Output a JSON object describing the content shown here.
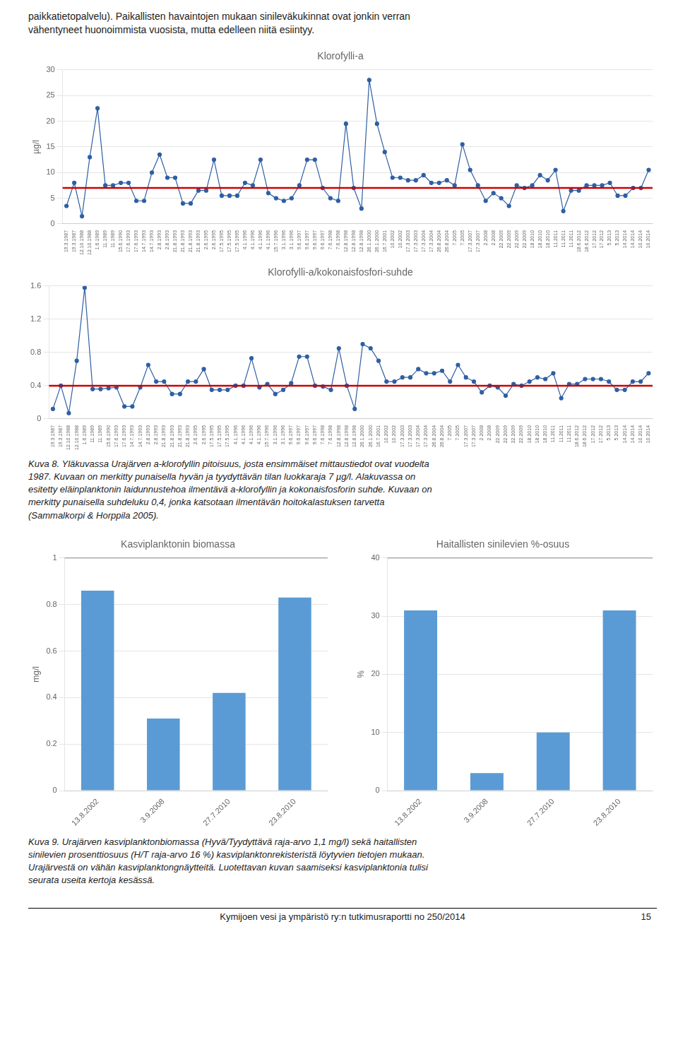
{
  "text_top": [
    "paikkatietopalvelu). Paikallisten havaintojen mukaan sinileväkukinnat ovat jonkin verran",
    "vähentyneet huonoimmista vuosista, mutta edelleen niitä esiintyy."
  ],
  "chart_data": [
    {
      "type": "line",
      "title": "Klorofylli-a",
      "ylabel": "µg/l",
      "categories": [
        "19.3.1987",
        "19.3.1987",
        "12.10.1988",
        "12.10.1988",
        "1.6.1989",
        "11.1989",
        "11.1989",
        "15.6.1990",
        "17.6.1993",
        "17.6.1993",
        "14.7.1993",
        "14.7.1993",
        "2.8.1993",
        "2.8.1993",
        "21.8.1993",
        "21.8.1993",
        "21.8.1993",
        "21.8.1993",
        "2.6.1995",
        "2.6.1995",
        "17.5.1995",
        "17.5.1995",
        "17.5.1995",
        "4.1.1996",
        "4.1.1996",
        "4.1.1996",
        "4.1.1996",
        "15.7.1996",
        "3.1.1996",
        "3.1.1996",
        "9.6.1997",
        "9.6.1997",
        "9.6.1997",
        "9.6.1997",
        "7.6.1998",
        "7.6.1998",
        "12.8.1998",
        "12.8.1998",
        "12.8.1998",
        "26.1.2000",
        "26.1.2000",
        "16.7.2001",
        "10.2002",
        "10.2002",
        "17.3.2003",
        "17.3.2003",
        "17.3.2004",
        "17.3.2004",
        "26.8.2004",
        "26.8.2004",
        "7.2005",
        "7.2005",
        "17.3.2007",
        "17.3.2007",
        "2.2008",
        "2.2008",
        "22.2009",
        "22.2009",
        "22.2009",
        "22.2009",
        "18.2010",
        "18.2010",
        "18.2010",
        "11.2011",
        "11.2011",
        "11.2011",
        "18.6.2012",
        "18.6.2012",
        "17.2012",
        "17.2012",
        "5.2013",
        "5.2013",
        "14.2014",
        "14.2014",
        "10.2014",
        "10.2014"
      ],
      "values": [
        3.5,
        8.0,
        1.5,
        13.0,
        22.5,
        7.5,
        7.5,
        8.0,
        8.0,
        4.5,
        4.5,
        10.0,
        13.5,
        9.0,
        9.0,
        4.0,
        4.0,
        6.5,
        6.5,
        12.5,
        5.5,
        5.5,
        5.5,
        8.0,
        7.5,
        12.5,
        6.0,
        5.0,
        4.5,
        5.0,
        7.5,
        12.5,
        12.5,
        7.0,
        5.0,
        4.5,
        19.5,
        7.0,
        3.0,
        28.0,
        19.5,
        14.0,
        9.0,
        9.0,
        8.5,
        8.5,
        9.5,
        8.0,
        8.0,
        8.5,
        7.5,
        15.5,
        10.5,
        7.5,
        4.5,
        6.0,
        5.0,
        3.5,
        7.5,
        7.0,
        7.5,
        9.5,
        8.5,
        10.5,
        2.5,
        6.5,
        6.5,
        7.5,
        7.5,
        7.5,
        8.0,
        5.5,
        5.5,
        7.0,
        7.0,
        10.5
      ],
      "color": "#2e5fa3",
      "marker": "circle",
      "ylim": [
        0,
        30
      ],
      "yticks": [
        0,
        5,
        10,
        15,
        20,
        25,
        30
      ],
      "grid": "y",
      "hline": {
        "value": 7,
        "color": "#cc0000"
      }
    },
    {
      "type": "line",
      "title": "Klorofylli-a/kokonaisfosfori-suhde",
      "categories": [
        "19.3.1987",
        "19.3.1987",
        "12.10.1988",
        "12.10.1988",
        "1.6.1989",
        "11.1989",
        "11.1989",
        "15.6.1990",
        "17.6.1993",
        "17.6.1993",
        "14.7.1993",
        "14.7.1993",
        "2.8.1993",
        "2.8.1993",
        "21.8.1993",
        "21.8.1993",
        "21.8.1993",
        "21.8.1993",
        "2.6.1995",
        "2.6.1995",
        "17.5.1995",
        "17.5.1995",
        "17.5.1995",
        "4.1.1996",
        "4.1.1996",
        "4.1.1996",
        "4.1.1996",
        "15.7.1996",
        "3.1.1996",
        "3.1.1996",
        "9.6.1997",
        "9.6.1997",
        "9.6.1997",
        "9.6.1997",
        "7.6.1998",
        "7.6.1998",
        "12.8.1998",
        "12.8.1998",
        "12.8.1998",
        "26.1.2000",
        "26.1.2000",
        "16.7.2001",
        "10.2002",
        "10.2002",
        "17.3.2003",
        "17.3.2003",
        "17.3.2004",
        "17.3.2004",
        "26.8.2004",
        "26.8.2004",
        "7.2005",
        "7.2005",
        "17.3.2007",
        "17.3.2007",
        "2.2008",
        "2.2008",
        "22.2009",
        "22.2009",
        "22.2009",
        "22.2009",
        "18.2010",
        "18.2010",
        "18.2010",
        "11.2011",
        "11.2011",
        "11.2011",
        "18.6.2012",
        "18.6.2012",
        "17.2012",
        "17.2012",
        "5.2013",
        "5.2013",
        "14.2014",
        "14.2014",
        "10.2014",
        "10.2014"
      ],
      "values": [
        0.12,
        0.4,
        0.07,
        0.7,
        1.58,
        0.36,
        0.36,
        0.37,
        0.38,
        0.15,
        0.15,
        0.38,
        0.65,
        0.45,
        0.45,
        0.3,
        0.3,
        0.45,
        0.45,
        0.6,
        0.35,
        0.35,
        0.35,
        0.4,
        0.4,
        0.73,
        0.38,
        0.42,
        0.3,
        0.35,
        0.43,
        0.75,
        0.75,
        0.4,
        0.39,
        0.35,
        0.85,
        0.4,
        0.12,
        0.9,
        0.85,
        0.7,
        0.45,
        0.45,
        0.5,
        0.5,
        0.6,
        0.55,
        0.55,
        0.58,
        0.45,
        0.65,
        0.5,
        0.45,
        0.32,
        0.4,
        0.38,
        0.28,
        0.42,
        0.4,
        0.45,
        0.5,
        0.48,
        0.55,
        0.25,
        0.42,
        0.42,
        0.48,
        0.48,
        0.48,
        0.45,
        0.35,
        0.35,
        0.45,
        0.45,
        0.55
      ],
      "color": "#2e5fa3",
      "marker": "circle",
      "ylim": [
        0,
        1.6
      ],
      "yticks": [
        0,
        0.4,
        0.8,
        1.2,
        1.6
      ],
      "grid": "y",
      "hline": {
        "value": 0.4,
        "color": "#cc0000"
      }
    },
    {
      "type": "bar",
      "title": "Kasviplanktonin biomassa",
      "ylabel": "mg/l",
      "categories": [
        "13.8.2002",
        "3.9.2008",
        "27.7.2010",
        "23.8.2010"
      ],
      "values": [
        0.86,
        0.31,
        0.42,
        0.83
      ],
      "color": "#5b9bd5",
      "ylim": [
        0,
        1
      ],
      "yticks": [
        0,
        0.2,
        0.4,
        0.6,
        0.8,
        1
      ],
      "grid": "y",
      "hline": {
        "value": 1.0,
        "color": "#888888"
      }
    },
    {
      "type": "bar",
      "title": "Haitallisten sinilevien %-osuus",
      "ylabel": "%",
      "categories": [
        "13.8.2002",
        "3.9.2008",
        "27.7.2010",
        "23.8.2010"
      ],
      "values": [
        31,
        3,
        10,
        31
      ],
      "color": "#5b9bd5",
      "ylim": [
        0,
        40
      ],
      "yticks": [
        0,
        10,
        20,
        30,
        40
      ],
      "grid": "y",
      "hline": {
        "value": 40,
        "color": "#888888"
      }
    }
  ],
  "caption1": "Kuva 8. Yläkuvassa Urajärven a-klorofyllin pitoisuus, josta ensimmäiset mittaustiedot ovat vuodelta\n1987. Kuvaan on merkitty punaisella hyvän ja tyydyttävän tilan luokkaraja 7 µg/l. Alakuvassa on\nesitetty eläinplanktonin laidunnustehoa ilmentävä a-klorofyllin ja kokonaisfosforin suhde. Kuvaan on\nmerkitty punaisella suhdeluku 0,4, jonka katsotaan ilmentävän hoitokalastuksen tarvetta\n(Sammalkorpi & Horppila 2005).",
  "caption2": "Kuva 9. Urajärven kasviplanktonbiomassa (Hyvä/Tyydyttävä raja-arvo 1,1 mg/l) sekä haitallisten\nsinilevien prosenttiosuus (H/T raja-arvo 16 %) kasviplanktonrekisteristä löytyvien tietojen mukaan.\nUrajärvestä on vähän kasviplanktongnäytteitä. Luotettavan kuvan saamiseksi kasviplanktonia tulisi\nseurata useita kertoja kesässä.",
  "footer": "Kymijoen vesi ja ympäristö ry:n tutkimusraportti no 250/2014",
  "footer_right": "15"
}
